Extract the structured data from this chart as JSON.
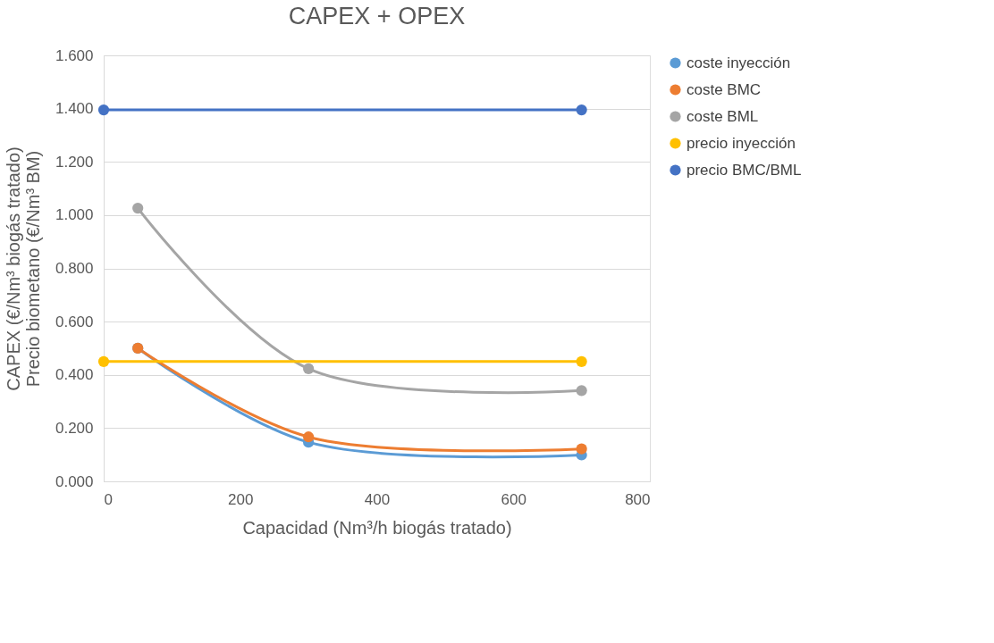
{
  "chart_data": {
    "type": "line",
    "title": "CAPEX + OPEX",
    "xlabel": "Capacidad (Nm³/h biogás tratado)",
    "ylabel": "CAPEX (€/Nm³ biogás tratado)\nPrecio biometano (€/Nm³ BM)",
    "series": [
      {
        "name": "coste inyección",
        "color": "#5b9bd5",
        "x": [
          50,
          300,
          700
        ],
        "values": [
          0.5,
          0.147,
          0.099
        ]
      },
      {
        "name": "coste BMC",
        "color": "#ed7d31",
        "x": [
          50,
          300,
          700
        ],
        "values": [
          0.5,
          0.167,
          0.122
        ]
      },
      {
        "name": "coste BML",
        "color": "#a5a5a5",
        "x": [
          50,
          300,
          700
        ],
        "values": [
          1.026,
          0.423,
          0.341
        ]
      },
      {
        "name": "precio inyección",
        "color": "#ffc000",
        "x": [
          0,
          700
        ],
        "values": [
          0.45,
          0.45
        ]
      },
      {
        "name": "precio BMC/BML",
        "color": "#4472c4",
        "x": [
          0,
          700
        ],
        "values": [
          1.395,
          1.395
        ]
      }
    ],
    "xlim": [
      0,
      800
    ],
    "xticks": [
      0,
      200,
      400,
      600,
      800
    ],
    "ylim": [
      0,
      1.6
    ],
    "yticks": [
      {
        "value": 0,
        "label": "0.000"
      },
      {
        "value": 0.2,
        "label": "0.200"
      },
      {
        "value": 0.4,
        "label": "0.400"
      },
      {
        "value": 0.6,
        "label": "0.600"
      },
      {
        "value": 0.8,
        "label": "0.800"
      },
      {
        "value": 1.0,
        "label": "1.000"
      },
      {
        "value": 1.2,
        "label": "1.200"
      },
      {
        "value": 1.4,
        "label": "1.400"
      },
      {
        "value": 1.6,
        "label": "1.600"
      }
    ],
    "grid": "y",
    "legend": "right",
    "marker": "circle",
    "line_style": "solid"
  }
}
